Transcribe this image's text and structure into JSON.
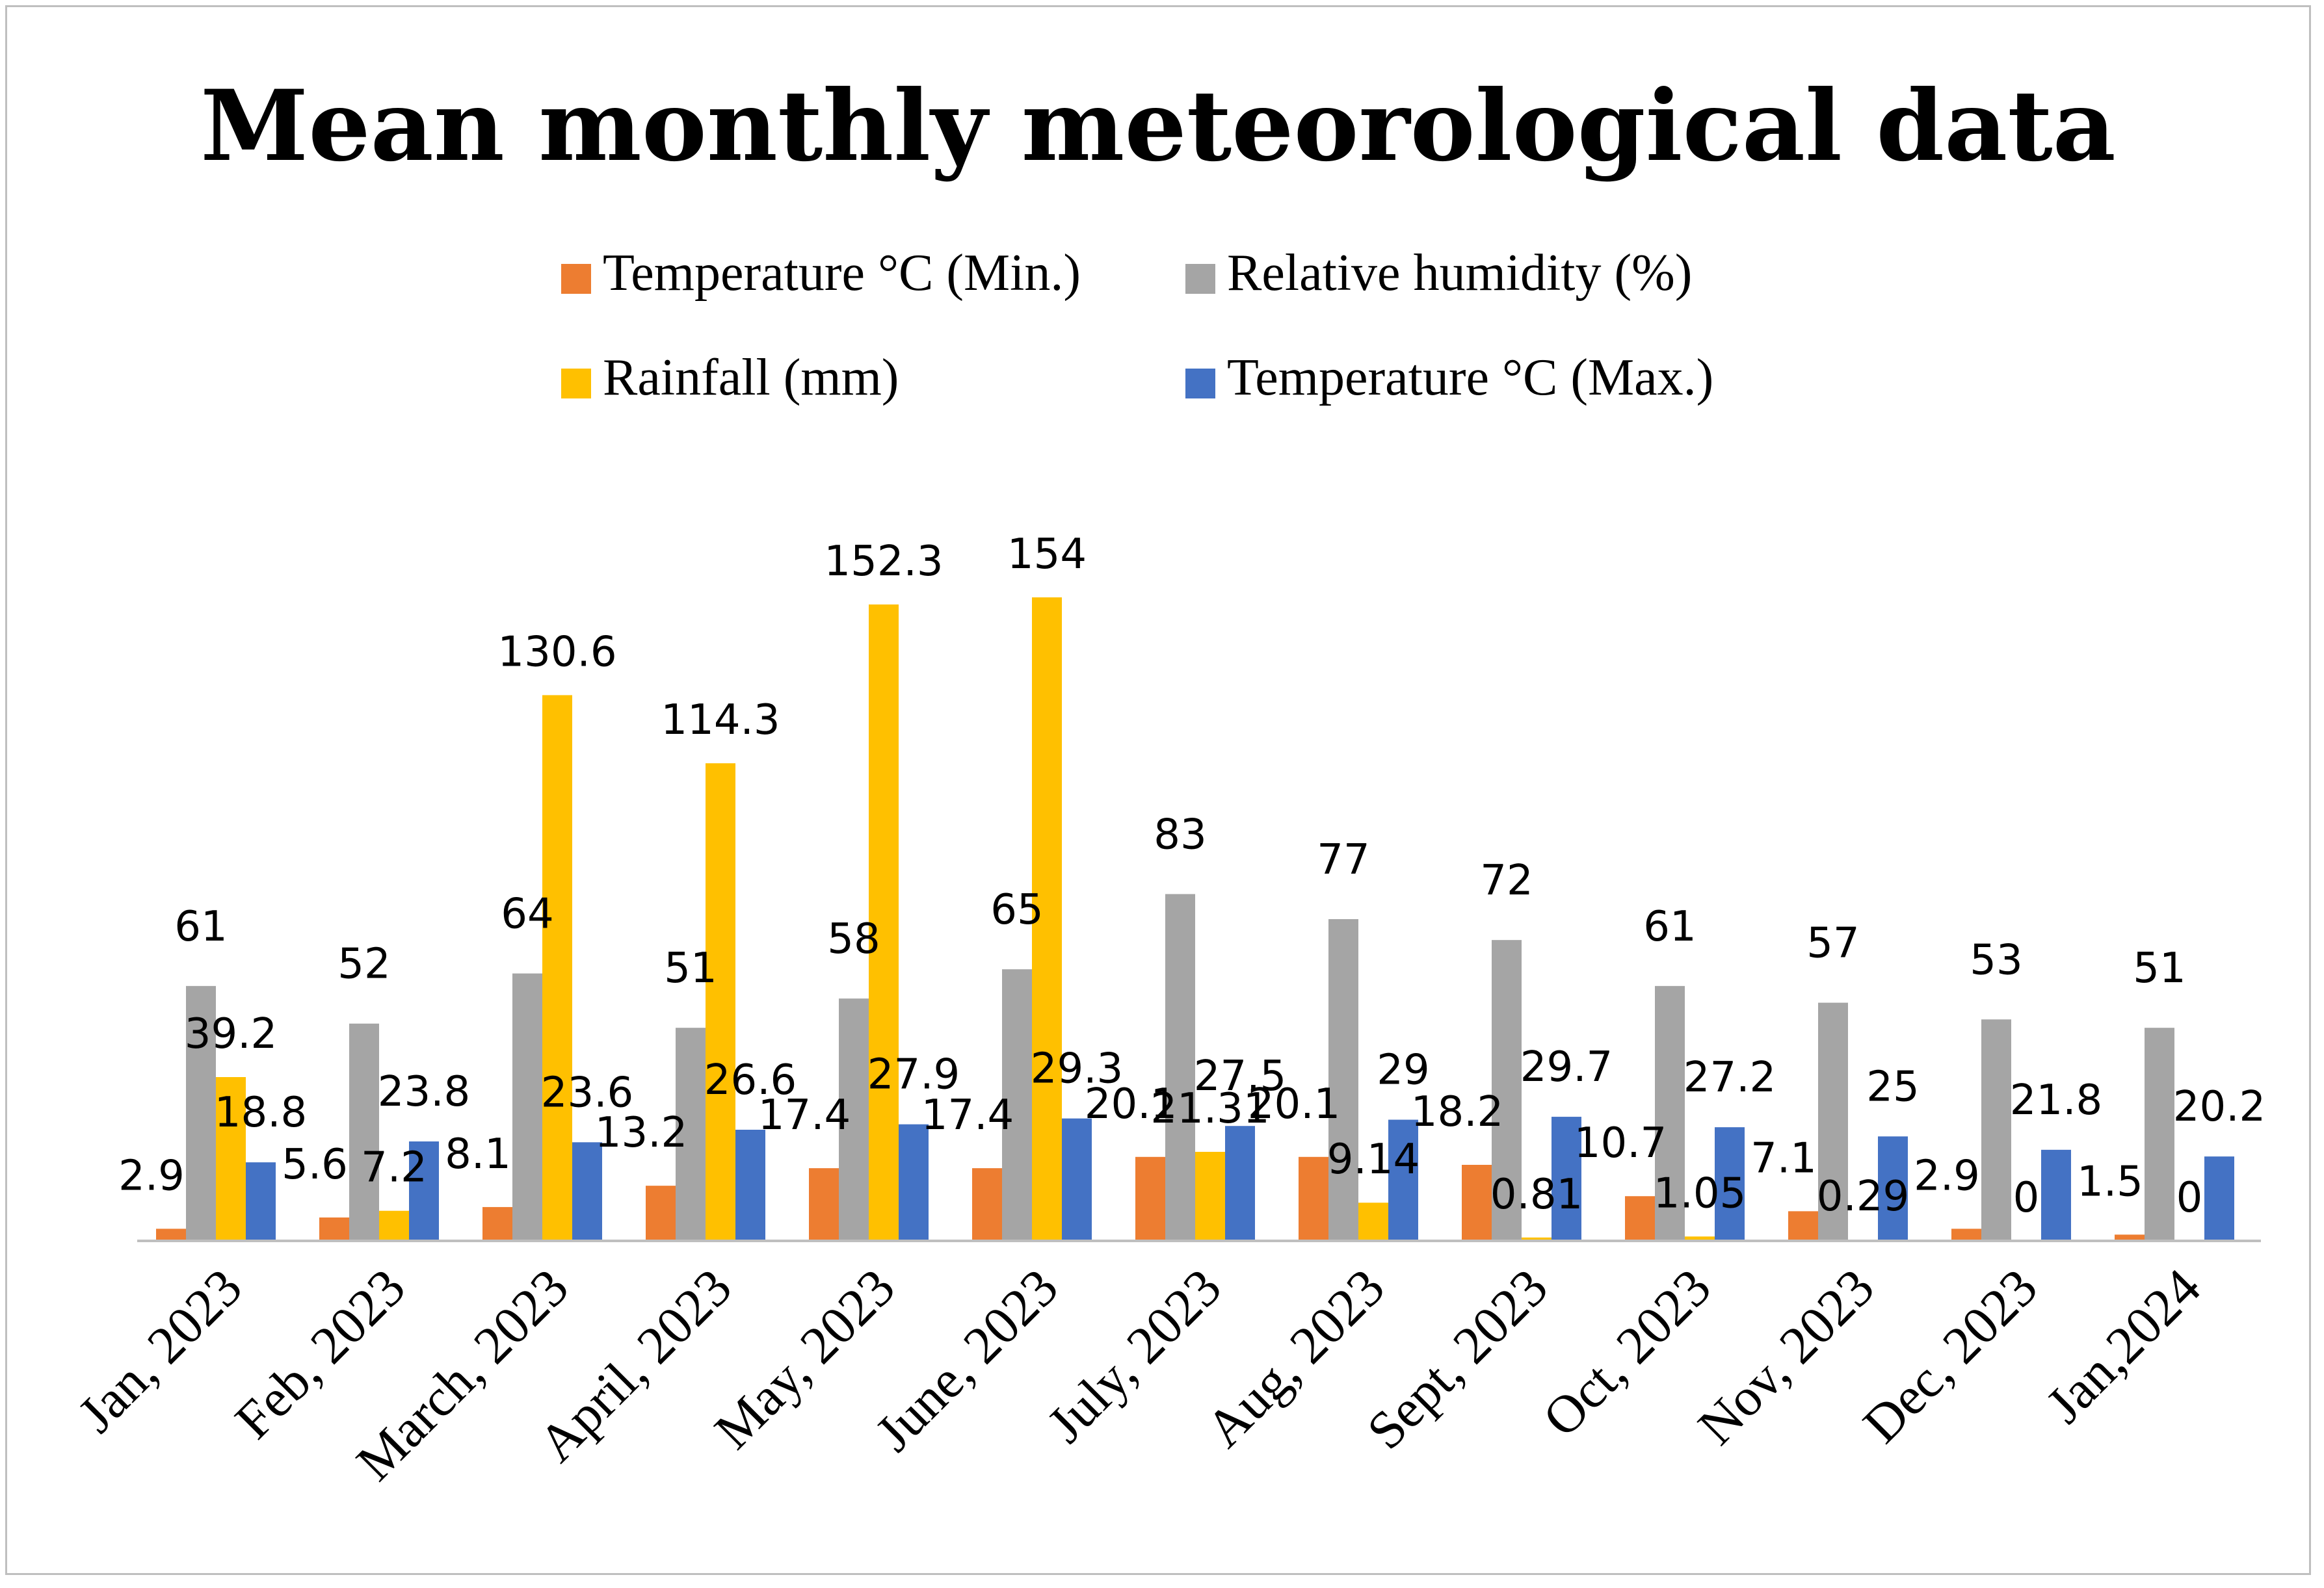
{
  "chart_data": {
    "type": "bar",
    "title": "Mean monthly meteorological data",
    "xlabel": "",
    "ylabel": "",
    "ylim": [
      0,
      170
    ],
    "grid": false,
    "legend_position": "top",
    "categories": [
      "Jan, 2023",
      "Feb, 2023",
      "March, 2023",
      "April, 2023",
      "May, 2023",
      "June, 2023",
      "July, 2023",
      "Aug, 2023",
      "Sept, 2023",
      "Oct, 2023",
      "Nov, 2023",
      "Dec, 2023",
      "Jan,2024"
    ],
    "series": [
      {
        "name": "Temperature °C (Min.)",
        "color": "#ED7D31",
        "values": [
          2.9,
          5.6,
          8.1,
          13.2,
          17.4,
          17.4,
          20.1,
          20.1,
          18.2,
          10.7,
          7.1,
          2.9,
          1.5
        ],
        "labels": [
          "2.9",
          "5.6",
          "8.1",
          "13.2",
          "17.4",
          "17.4",
          "20.1",
          "20.1",
          "18.2",
          "10.7",
          "7.1",
          "2.9",
          "1.5"
        ]
      },
      {
        "name": "Relative humidity (%)",
        "color": "#A5A5A5",
        "values": [
          61,
          52,
          64,
          51,
          58,
          65,
          83,
          77,
          72,
          61,
          57,
          53,
          51
        ],
        "labels": [
          "61",
          "52",
          "64",
          "51",
          "58",
          "65",
          "83",
          "77",
          "72",
          "61",
          "57",
          "53",
          "51"
        ]
      },
      {
        "name": "Rainfall (mm)",
        "color": "#FFC000",
        "values": [
          39.2,
          7.2,
          130.6,
          114.3,
          152.3,
          154,
          21.31,
          9.14,
          0.81,
          1.05,
          0.29,
          0,
          0
        ],
        "labels": [
          "39.2",
          "7.2",
          "130.6",
          "114.3",
          "152.3",
          "154",
          "21.31",
          "9.14",
          "0.81",
          "1.05",
          "0.29",
          "0",
          "0"
        ]
      },
      {
        "name": "Temperature °C (Max.)",
        "color": "#4472C4",
        "values": [
          18.8,
          23.8,
          23.6,
          26.6,
          27.9,
          29.3,
          27.5,
          29,
          29.7,
          27.2,
          25,
          21.8,
          20.2
        ],
        "labels": [
          "18.8",
          "23.8",
          "23.6",
          "26.6",
          "27.9",
          "29.3",
          "27.5",
          "29",
          "29.7",
          "27.2",
          "25",
          "21.8",
          "20.2"
        ]
      }
    ],
    "legend_order": [
      0,
      1,
      2,
      3
    ]
  }
}
